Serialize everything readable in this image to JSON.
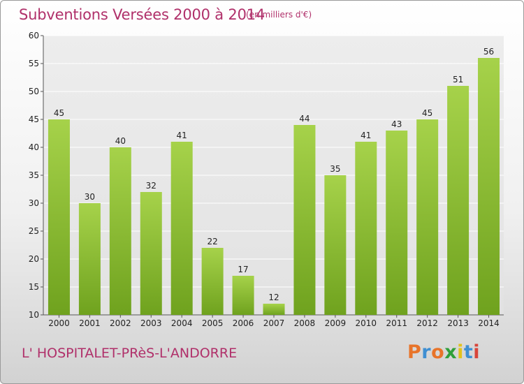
{
  "header": {
    "title": "Subventions Versées 2000 à 2014",
    "unit": "(en milliers d'€)"
  },
  "footer": {
    "commune": "L' HOSPITALET-PRèS-L'ANDORRE",
    "logo": "Proxiti",
    "logo_colors": [
      "#e8742a",
      "#3f8fd2",
      "#e8742a",
      "#2f9f3a",
      "#e2c21c",
      "#3f8fd2",
      "#d8453a"
    ]
  },
  "colors": {
    "accent": "#b0306a",
    "bar_light": "#a6d24a",
    "bar_dark": "#6fa21e",
    "grid": "#ffffff",
    "plot_bg": "#e6e6e6"
  },
  "chart_data": {
    "type": "bar",
    "title": "Subventions Versées 2000 à 2014",
    "subtitle": "(en milliers d'€)",
    "xlabel": "",
    "ylabel": "",
    "categories": [
      "2000",
      "2001",
      "2002",
      "2003",
      "2004",
      "2005",
      "2006",
      "2007",
      "2008",
      "2009",
      "2010",
      "2011",
      "2012",
      "2013",
      "2014"
    ],
    "values": [
      45,
      30,
      40,
      32,
      41,
      22,
      17,
      12,
      44,
      35,
      41,
      43,
      45,
      51,
      56
    ],
    "ylim": [
      10,
      60
    ],
    "yticks": [
      10,
      15,
      20,
      25,
      30,
      35,
      40,
      45,
      50,
      55,
      60
    ],
    "grid": true,
    "legend": "none"
  }
}
